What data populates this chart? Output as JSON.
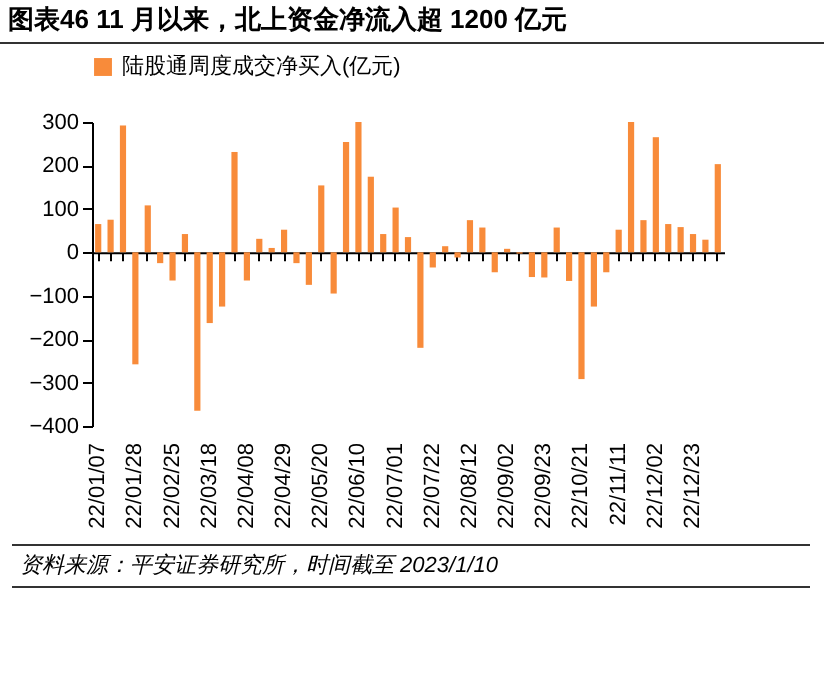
{
  "chart_data": {
    "type": "bar",
    "title": "图表46   11 月以来，北上资金净流入超 1200 亿元",
    "categories": [
      "22/01/07",
      null,
      null,
      "22/01/28",
      null,
      null,
      "22/02/25",
      null,
      null,
      "22/03/18",
      null,
      null,
      "22/04/08",
      null,
      null,
      "22/04/29",
      null,
      null,
      "22/05/20",
      null,
      null,
      "22/06/10",
      null,
      null,
      "22/07/01",
      null,
      null,
      "22/07/22",
      null,
      null,
      "22/08/12",
      null,
      null,
      "22/09/02",
      null,
      null,
      "22/09/23",
      null,
      null,
      "22/10/21",
      null,
      null,
      "22/11/11",
      null,
      null,
      "22/12/02",
      null,
      null,
      "22/12/23",
      null,
      null
    ],
    "series": [
      {
        "name": "陆股通周度成交净买入(亿元)",
        "color": "#f88b3a",
        "values": [
          65,
          75,
          292,
          -258,
          108,
          -25,
          -65,
          42,
          -365,
          -163,
          -125,
          231,
          -65,
          31,
          10,
          52,
          -25,
          -75,
          154,
          -95,
          254,
          300,
          174,
          42,
          103,
          35,
          -220,
          -35,
          14,
          -12,
          74,
          57,
          -46,
          8,
          -3,
          -57,
          -58,
          57,
          -66,
          -292,
          -125,
          -46,
          52,
          300,
          74,
          265,
          65,
          58,
          42,
          29,
          203
        ]
      }
    ],
    "ylim": [
      -400,
      300
    ],
    "yticks": [
      -400,
      -300,
      -200,
      -100,
      0,
      100,
      200,
      300
    ],
    "legend": "top",
    "annotations": [
      "资料来源：平安证券研究所，时间截至 2023/1/10"
    ]
  }
}
